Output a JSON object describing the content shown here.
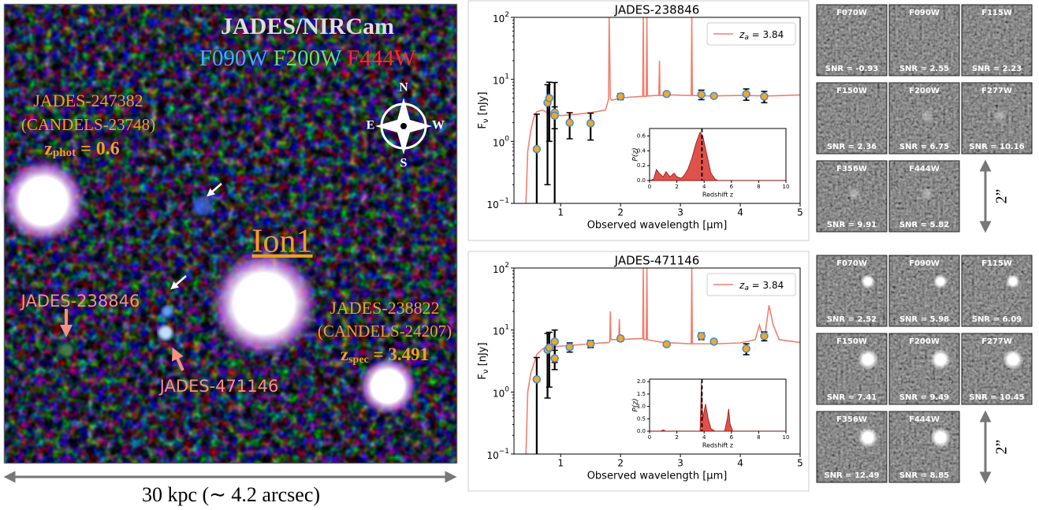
{
  "image_panel": {
    "title": "JADES/NIRCam",
    "filters": [
      {
        "name": "F090W",
        "color": "#4aa8ff"
      },
      {
        "name": "F200W",
        "color": "#66e066"
      },
      {
        "name": "F444W",
        "color": "#ff2a2a"
      }
    ],
    "compass": [
      "N",
      "E",
      "W",
      "S"
    ],
    "phot_source": {
      "name": "JADES-247382",
      "alias": "(CANDELS-23748)",
      "z_symbol": "z",
      "z_sub": "phot",
      "z_text": " = 0.6"
    },
    "spec_source": {
      "name": "JADES-238822",
      "alias": "(CANDELS-24207)",
      "z_symbol": "z",
      "z_sub": "spec",
      "z_text": " = 3.491"
    },
    "target": "Ion1",
    "labels": [
      "JADES-238846",
      "JADES-471146"
    ],
    "scale_bar": "30 kpc (∼ 4.2 arcsec)"
  },
  "chart_data": [
    {
      "type": "line",
      "title": "JADES-238846",
      "x_label": "Observed wavelength [μm]",
      "y_label": "F",
      "y_label_sub": "ν",
      "y_label_unit": " [nJy]",
      "xlim": [
        0.22,
        5
      ],
      "xticks": [
        1,
        2,
        3,
        4,
        5
      ],
      "ylim": [
        0.1,
        100
      ],
      "log_y": true,
      "yticks": [
        {
          "value": 0.1,
          "label": "10",
          "exponent": "−1"
        },
        {
          "value": 1,
          "label": "10",
          "exponent": "0"
        },
        {
          "value": 10,
          "label": "10",
          "exponent": "1"
        },
        {
          "value": 100,
          "label": "10",
          "exponent": "2"
        }
      ],
      "model": {
        "name": "z",
        "name_sub": "a",
        "name_value": " = 3.84",
        "color": "#f0806e",
        "x": [
          0.42,
          0.45,
          0.5,
          0.55,
          0.6,
          0.7,
          0.8,
          0.9,
          1.0,
          1.2,
          1.5,
          1.75,
          1.8,
          1.81,
          1.83,
          1.85,
          2.0,
          2.2,
          2.37,
          2.38,
          2.39,
          2.43,
          2.44,
          2.45,
          2.6,
          2.64,
          2.65,
          2.66,
          2.8,
          3.18,
          3.19,
          3.2,
          3.5,
          4.0,
          4.5,
          5.0
        ],
        "values": [
          0.1,
          0.7,
          1.5,
          2.4,
          3.0,
          3.2,
          2.8,
          2.7,
          2.6,
          2.7,
          2.9,
          3.2,
          4.8,
          100,
          5.0,
          4.6,
          5.0,
          5.2,
          5.3,
          100,
          5.3,
          5.3,
          100,
          5.4,
          5.5,
          5.5,
          20,
          5.5,
          5.6,
          5.5,
          100,
          5.5,
          5.4,
          5.5,
          5.4,
          5.6
        ]
      },
      "photometry": {
        "color": "#f5a623",
        "edge": "#3a8ed8",
        "x": [
          0.6,
          0.78,
          0.81,
          0.9,
          0.9,
          1.15,
          1.5,
          2.0,
          2.77,
          3.35,
          3.56,
          4.1,
          4.4
        ],
        "values": [
          0.75,
          4.2,
          5.0,
          2.9,
          2.6,
          2.0,
          1.95,
          5.3,
          5.8,
          5.7,
          5.4,
          5.8,
          5.3
        ],
        "errors": [
          2.0,
          4.0,
          4.0,
          6.0,
          1.0,
          0.9,
          0.9,
          0.6,
          0.4,
          1.0,
          0.4,
          1.2,
          1.1
        ]
      },
      "inset": {
        "type": "area",
        "x_label": "Redshift z",
        "y_label": "P(z)",
        "color": "#d9342b",
        "xlim": [
          0,
          10
        ],
        "xticks": [
          0,
          2,
          4,
          6,
          8,
          10
        ],
        "ylim": [
          0,
          0.7
        ],
        "yticks": [
          {
            "value": 0,
            "label": "0.0"
          },
          0.2,
          0.4,
          0.6
        ],
        "z_line": 3.84,
        "x": [
          0,
          0.3,
          0.5,
          0.7,
          1.0,
          1.2,
          1.5,
          1.8,
          2.0,
          2.3,
          2.5,
          2.8,
          3.1,
          3.4,
          3.7,
          3.9,
          4.2,
          4.5,
          4.8,
          5.0,
          10
        ],
        "values": [
          0,
          0.02,
          0.15,
          0.1,
          0.05,
          0.12,
          0.05,
          0.1,
          0.05,
          0.03,
          0.06,
          0.15,
          0.3,
          0.5,
          0.65,
          0.6,
          0.35,
          0.1,
          0.02,
          0,
          0
        ]
      },
      "cutouts": [
        {
          "filter": "F070W",
          "snr": "SNR = -0.93"
        },
        {
          "filter": "F090W",
          "snr": "SNR = 2.55"
        },
        {
          "filter": "F115W",
          "snr": "SNR = 2.23"
        },
        {
          "filter": "F150W",
          "snr": "SNR = 2.36"
        },
        {
          "filter": "F200W",
          "snr": "SNR = 6.75"
        },
        {
          "filter": "F277W",
          "snr": "SNR = 10.16"
        },
        {
          "filter": "F356W",
          "snr": "SNR = 9.91"
        },
        {
          "filter": "F444W",
          "snr": "SNR = 5.82"
        }
      ],
      "cutout_scale": "2”"
    },
    {
      "type": "line",
      "title": "JADES-471146",
      "x_label": "Observed wavelength [μm]",
      "y_label": "F",
      "y_label_sub": "ν",
      "y_label_unit": " [nJy]",
      "xlim": [
        0.22,
        5
      ],
      "xticks": [
        1,
        2,
        3,
        4,
        5
      ],
      "ylim": [
        0.1,
        100
      ],
      "log_y": true,
      "yticks": [
        {
          "value": 0.1,
          "label": "10",
          "exponent": "−1"
        },
        {
          "value": 1,
          "label": "10",
          "exponent": "0"
        },
        {
          "value": 10,
          "label": "10",
          "exponent": "1"
        },
        {
          "value": 100,
          "label": "10",
          "exponent": "2"
        }
      ],
      "model": {
        "name": "z",
        "name_sub": "a",
        "name_value": " = 3.84",
        "color": "#f0806e",
        "x": [
          0.42,
          0.45,
          0.5,
          0.6,
          0.7,
          0.85,
          1.0,
          1.5,
          1.8,
          1.82,
          1.83,
          1.84,
          1.97,
          1.98,
          1.99,
          2.2,
          2.37,
          2.38,
          2.39,
          2.43,
          2.44,
          2.45,
          2.7,
          3.18,
          3.19,
          3.2,
          3.6,
          4.0,
          4.25,
          4.32,
          4.4,
          4.48,
          4.55,
          4.65,
          5.0
        ],
        "values": [
          0.1,
          1.0,
          2.0,
          4.0,
          5.0,
          5.3,
          5.5,
          6.0,
          6.3,
          6.5,
          20,
          7.0,
          7.0,
          15,
          7.0,
          7.2,
          7.3,
          100,
          7.0,
          7.0,
          100,
          7.0,
          6.3,
          6.0,
          100,
          6.0,
          6.0,
          6.2,
          7.0,
          12,
          6.8,
          25,
          12,
          7.0,
          6.3
        ]
      },
      "photometry": {
        "color": "#f5a623",
        "edge": "#3a8ed8",
        "x": [
          0.6,
          0.78,
          0.81,
          0.9,
          0.9,
          1.15,
          1.5,
          2.0,
          2.77,
          3.35,
          3.56,
          4.1,
          4.4
        ],
        "values": [
          1.6,
          4.8,
          5.2,
          6.5,
          3.5,
          5.3,
          6.0,
          7.3,
          5.9,
          8.0,
          6.5,
          5.0,
          8.0
        ],
        "errors": [
          2.0,
          4.0,
          4.0,
          3.5,
          1.2,
          0.9,
          0.8,
          0.7,
          0.4,
          1.0,
          0.5,
          1.0,
          1.3
        ]
      },
      "inset": {
        "type": "area",
        "x_label": "Redshift z",
        "y_label": "P(z)",
        "color": "#d9342b",
        "xlim": [
          0,
          10
        ],
        "xticks": [
          0,
          2,
          4,
          6,
          8,
          10
        ],
        "ylim": [
          0,
          2.1
        ],
        "yticks": [
          {
            "value": 0,
            "label": "0.0"
          },
          0.5,
          {
            "value": 1,
            "label": "1.0"
          },
          1.5,
          {
            "value": 2,
            "label": "2.0"
          }
        ],
        "z_line": 3.84,
        "x": [
          0,
          0.8,
          1.0,
          1.2,
          3.7,
          3.8,
          3.9,
          4.1,
          4.3,
          4.5,
          4.8,
          5.5,
          5.7,
          5.8,
          5.9,
          6.1,
          10
        ],
        "values": [
          0,
          0,
          0.05,
          0,
          0,
          2.0,
          0.5,
          1.1,
          0.5,
          0.1,
          0,
          0,
          0.5,
          0.9,
          0.3,
          0,
          0
        ]
      },
      "cutouts": [
        {
          "filter": "F070W",
          "snr": "SNR = 2.52"
        },
        {
          "filter": "F090W",
          "snr": "SNR = 5.98"
        },
        {
          "filter": "F115W",
          "snr": "SNR = 6.09"
        },
        {
          "filter": "F150W",
          "snr": "SNR = 7.41"
        },
        {
          "filter": "F200W",
          "snr": "SNR = 9.49"
        },
        {
          "filter": "F277W",
          "snr": "SNR = 10.45"
        },
        {
          "filter": "F356W",
          "snr": "SNR = 12.49"
        },
        {
          "filter": "F444W",
          "snr": "SNR = 8.85"
        }
      ],
      "cutout_scale": "2”"
    }
  ]
}
